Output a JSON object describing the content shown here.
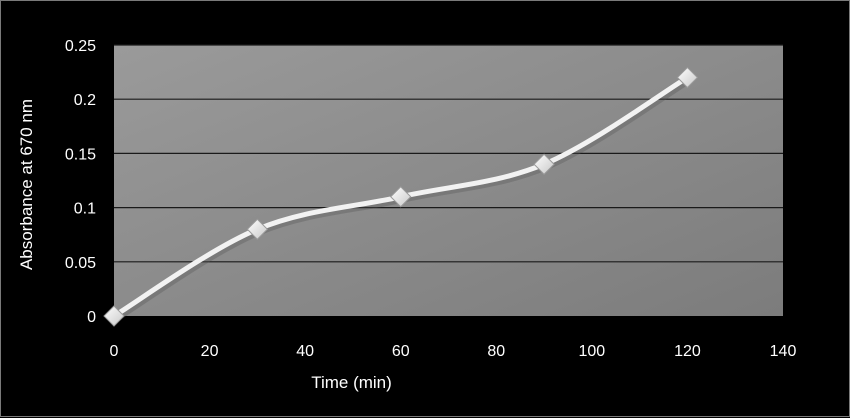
{
  "chart_data": {
    "type": "line",
    "title": "",
    "xlabel": "Time (min)",
    "ylabel": "Absorbance at 670 nm",
    "x": [
      0,
      30,
      60,
      90,
      120
    ],
    "series": [
      {
        "values": [
          0,
          0.08,
          0.11,
          0.14,
          0.22
        ]
      }
    ],
    "xlim": [
      0,
      140
    ],
    "ylim": [
      0,
      0.25
    ],
    "xticks": [
      0,
      20,
      40,
      60,
      80,
      100,
      120,
      140
    ],
    "xtick_labels": [
      "0",
      "20",
      "40",
      "60",
      "80",
      "100",
      "120",
      "140"
    ],
    "yticks": [
      0,
      0.05,
      0.1,
      0.15,
      0.2,
      0.25
    ],
    "ytick_labels": [
      "0",
      "0.05",
      "0.1",
      "0.15",
      "0.2",
      "0.25"
    ],
    "grid": "horizontal",
    "smooth": true,
    "marker": "diamond",
    "colors": {
      "background": "#000000",
      "plot_area": "#8a8a8a",
      "gridline": "#1a1a1a",
      "line": "#f2f2f2",
      "marker_fill": "#ffffff",
      "text": "#ffffff"
    }
  }
}
